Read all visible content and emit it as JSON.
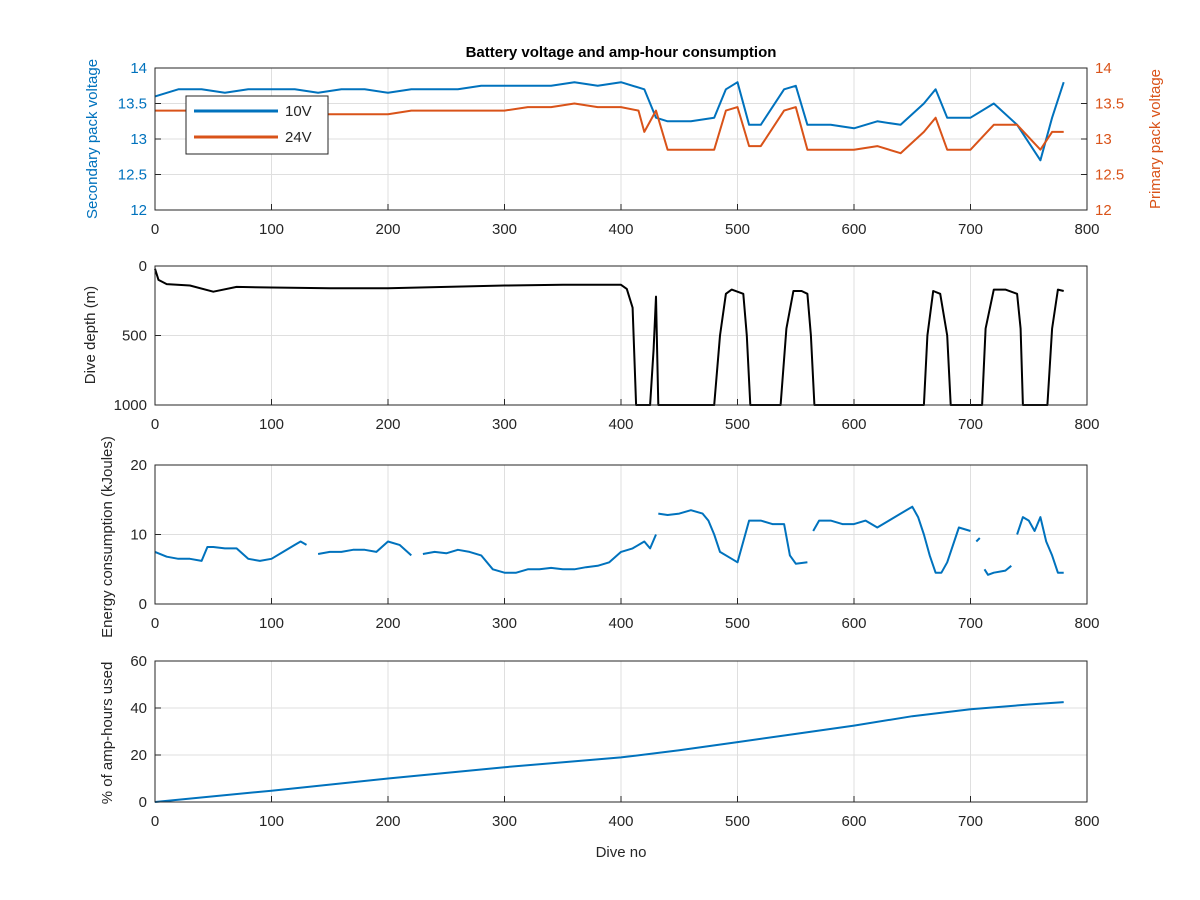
{
  "chart_data": [
    {
      "type": "line",
      "title": "Battery voltage and amp-hour consumption",
      "xlim": [
        0,
        800
      ],
      "xticks": [
        "0",
        "100",
        "200",
        "300",
        "400",
        "500",
        "600",
        "700",
        "800"
      ],
      "ylabel_left": "Secondary pack voltage",
      "ylabel_right": "Primary pack voltage",
      "ylim": [
        12,
        14
      ],
      "yticks": [
        "12",
        "12.5",
        "13",
        "13.5",
        "14"
      ],
      "grid": true,
      "legend_position": "top-left",
      "colors": {
        "10V": "#0072BD",
        "24V": "#D95319"
      },
      "series": [
        {
          "name": "10V",
          "axis": "left",
          "x": [
            0,
            20,
            40,
            60,
            80,
            100,
            120,
            140,
            160,
            180,
            200,
            220,
            240,
            260,
            280,
            300,
            320,
            340,
            360,
            380,
            400,
            420,
            430,
            440,
            460,
            480,
            490,
            500,
            510,
            520,
            540,
            550,
            560,
            580,
            600,
            620,
            640,
            660,
            670,
            680,
            700,
            720,
            740,
            760,
            770,
            780
          ],
          "values": [
            13.6,
            13.7,
            13.7,
            13.65,
            13.7,
            13.7,
            13.7,
            13.65,
            13.7,
            13.7,
            13.65,
            13.7,
            13.7,
            13.7,
            13.75,
            13.75,
            13.75,
            13.75,
            13.8,
            13.75,
            13.8,
            13.7,
            13.3,
            13.25,
            13.25,
            13.3,
            13.7,
            13.8,
            13.2,
            13.2,
            13.7,
            13.75,
            13.2,
            13.2,
            13.15,
            13.25,
            13.2,
            13.5,
            13.7,
            13.3,
            13.3,
            13.5,
            13.2,
            12.7,
            13.3,
            13.8
          ]
        },
        {
          "name": "24V",
          "axis": "right",
          "x": [
            0,
            20,
            40,
            60,
            80,
            100,
            120,
            140,
            160,
            180,
            200,
            220,
            240,
            260,
            280,
            300,
            320,
            340,
            360,
            380,
            400,
            415,
            420,
            430,
            440,
            460,
            480,
            490,
            500,
            510,
            520,
            540,
            550,
            560,
            580,
            600,
            620,
            640,
            660,
            670,
            680,
            700,
            720,
            740,
            760,
            770,
            780
          ],
          "values": [
            13.4,
            13.4,
            13.4,
            13.4,
            13.35,
            13.4,
            13.4,
            13.35,
            13.35,
            13.35,
            13.35,
            13.4,
            13.4,
            13.4,
            13.4,
            13.4,
            13.45,
            13.45,
            13.5,
            13.45,
            13.45,
            13.4,
            13.1,
            13.4,
            12.85,
            12.85,
            12.85,
            13.4,
            13.45,
            12.9,
            12.9,
            13.4,
            13.45,
            12.85,
            12.85,
            12.85,
            12.9,
            12.8,
            13.1,
            13.3,
            12.85,
            12.85,
            13.2,
            13.2,
            12.85,
            13.1,
            13.1
          ]
        }
      ]
    },
    {
      "type": "line",
      "title": "",
      "xlim": [
        0,
        800
      ],
      "xticks": [
        "0",
        "100",
        "200",
        "300",
        "400",
        "500",
        "600",
        "700",
        "800"
      ],
      "ylabel": "Dive depth (m)",
      "ylim": [
        0,
        1000
      ],
      "y_reversed": true,
      "yticks": [
        "0",
        "500",
        "1000"
      ],
      "grid": true,
      "colors": {
        "depth": "#000000"
      },
      "series": [
        {
          "x": [
            0,
            3,
            10,
            30,
            50,
            70,
            100,
            150,
            200,
            250,
            300,
            350,
            400,
            405,
            410,
            413,
            425,
            428,
            430,
            431,
            432,
            433,
            440,
            460,
            480,
            485,
            490,
            495,
            505,
            508,
            511,
            520,
            537,
            542,
            548,
            555,
            560,
            563,
            566,
            600,
            640,
            660,
            663,
            668,
            674,
            680,
            683,
            686,
            700,
            710,
            713,
            720,
            730,
            740,
            743,
            745,
            760,
            766,
            770,
            775,
            780
          ],
          "values": [
            20,
            100,
            130,
            140,
            185,
            150,
            155,
            160,
            160,
            150,
            140,
            135,
            135,
            165,
            300,
            1000,
            1000,
            600,
            220,
            600,
            1000,
            1000,
            1000,
            1000,
            1000,
            500,
            200,
            170,
            200,
            500,
            1000,
            1000,
            1000,
            450,
            180,
            180,
            200,
            500,
            1000,
            1000,
            1000,
            1000,
            500,
            180,
            200,
            500,
            1000,
            1000,
            1000,
            1000,
            450,
            170,
            170,
            200,
            450,
            1000,
            1000,
            1000,
            450,
            170,
            180
          ]
        }
      ]
    },
    {
      "type": "line",
      "title": "",
      "xlim": [
        0,
        800
      ],
      "xticks": [
        "0",
        "100",
        "200",
        "300",
        "400",
        "500",
        "600",
        "700",
        "800"
      ],
      "ylabel": "Energy consumption (kJoules)",
      "ylim": [
        0,
        20
      ],
      "yticks": [
        "0",
        "10",
        "20"
      ],
      "grid": true,
      "colors": {
        "energy": "#0072BD"
      },
      "series": [
        {
          "segments": [
            {
              "x": [
                0,
                10,
                20,
                30,
                40,
                45,
                50,
                60,
                70,
                80,
                90,
                100,
                110,
                120,
                125,
                130
              ],
              "values": [
                7.5,
                6.8,
                6.5,
                6.5,
                6.2,
                8.2,
                8.2,
                8.0,
                8.0,
                6.5,
                6.2,
                6.5,
                7.5,
                8.5,
                9.0,
                8.5
              ]
            },
            {
              "x": [
                140,
                150,
                160,
                170,
                180,
                190,
                200,
                210,
                220
              ],
              "values": [
                7.2,
                7.5,
                7.5,
                7.8,
                7.8,
                7.5,
                9.0,
                8.5,
                7.0
              ]
            },
            {
              "x": [
                230,
                240,
                250,
                260,
                270,
                280,
                290,
                300,
                310,
                320,
                330,
                340,
                350,
                360,
                370,
                380,
                390,
                400,
                410,
                420,
                425,
                430
              ],
              "values": [
                7.2,
                7.5,
                7.3,
                7.8,
                7.5,
                7.0,
                5.0,
                4.5,
                4.5,
                5.0,
                5.0,
                5.2,
                5.0,
                5.0,
                5.3,
                5.5,
                6.0,
                7.5,
                8.0,
                9.0,
                8.0,
                10.0
              ]
            },
            {
              "x": [
                432,
                440,
                450,
                460,
                470,
                475,
                480,
                485,
                495,
                500,
                510,
                520,
                530,
                540,
                545,
                550,
                560
              ],
              "values": [
                13.0,
                12.8,
                13.0,
                13.5,
                13.0,
                12.0,
                10.0,
                7.5,
                6.5,
                6.0,
                12.0,
                12.0,
                11.5,
                11.5,
                7.0,
                5.8,
                6.0
              ]
            },
            {
              "x": [
                565,
                570,
                580,
                590,
                600,
                610,
                620,
                630,
                640,
                650,
                655,
                660,
                665,
                670,
                675,
                680,
                690,
                700
              ],
              "values": [
                10.5,
                12.0,
                12.0,
                11.5,
                11.5,
                12.0,
                11.0,
                12.0,
                13.0,
                14.0,
                12.5,
                10.0,
                7.0,
                4.5,
                4.5,
                6.0,
                11.0,
                10.5
              ]
            },
            {
              "x": [
                705,
                708
              ],
              "values": [
                9.0,
                9.5
              ]
            },
            {
              "x": [
                712,
                715,
                720,
                730,
                735
              ],
              "values": [
                5.0,
                4.2,
                4.5,
                4.8,
                5.5
              ]
            },
            {
              "x": [
                740,
                745,
                750,
                755,
                760,
                765,
                770,
                775,
                780
              ],
              "values": [
                10.0,
                12.5,
                12.0,
                10.5,
                12.5,
                9.0,
                7.0,
                4.5,
                4.5
              ]
            }
          ]
        }
      ]
    },
    {
      "type": "line",
      "title": "",
      "xlim": [
        0,
        800
      ],
      "xticks": [
        "0",
        "100",
        "200",
        "300",
        "400",
        "500",
        "600",
        "700",
        "800"
      ],
      "xlabel": "Dive no",
      "ylabel": "% of amp-hours used",
      "ylim": [
        0,
        60
      ],
      "yticks": [
        "0",
        "20",
        "40",
        "60"
      ],
      "grid": true,
      "colors": {
        "amp_hours": "#0072BD"
      },
      "series": [
        {
          "x": [
            0,
            100,
            200,
            300,
            400,
            450,
            500,
            550,
            600,
            650,
            700,
            750,
            780
          ],
          "values": [
            0,
            4.8,
            10.0,
            14.8,
            19.0,
            22.0,
            25.5,
            29.0,
            32.5,
            36.5,
            39.5,
            41.5,
            42.5
          ]
        }
      ]
    }
  ]
}
